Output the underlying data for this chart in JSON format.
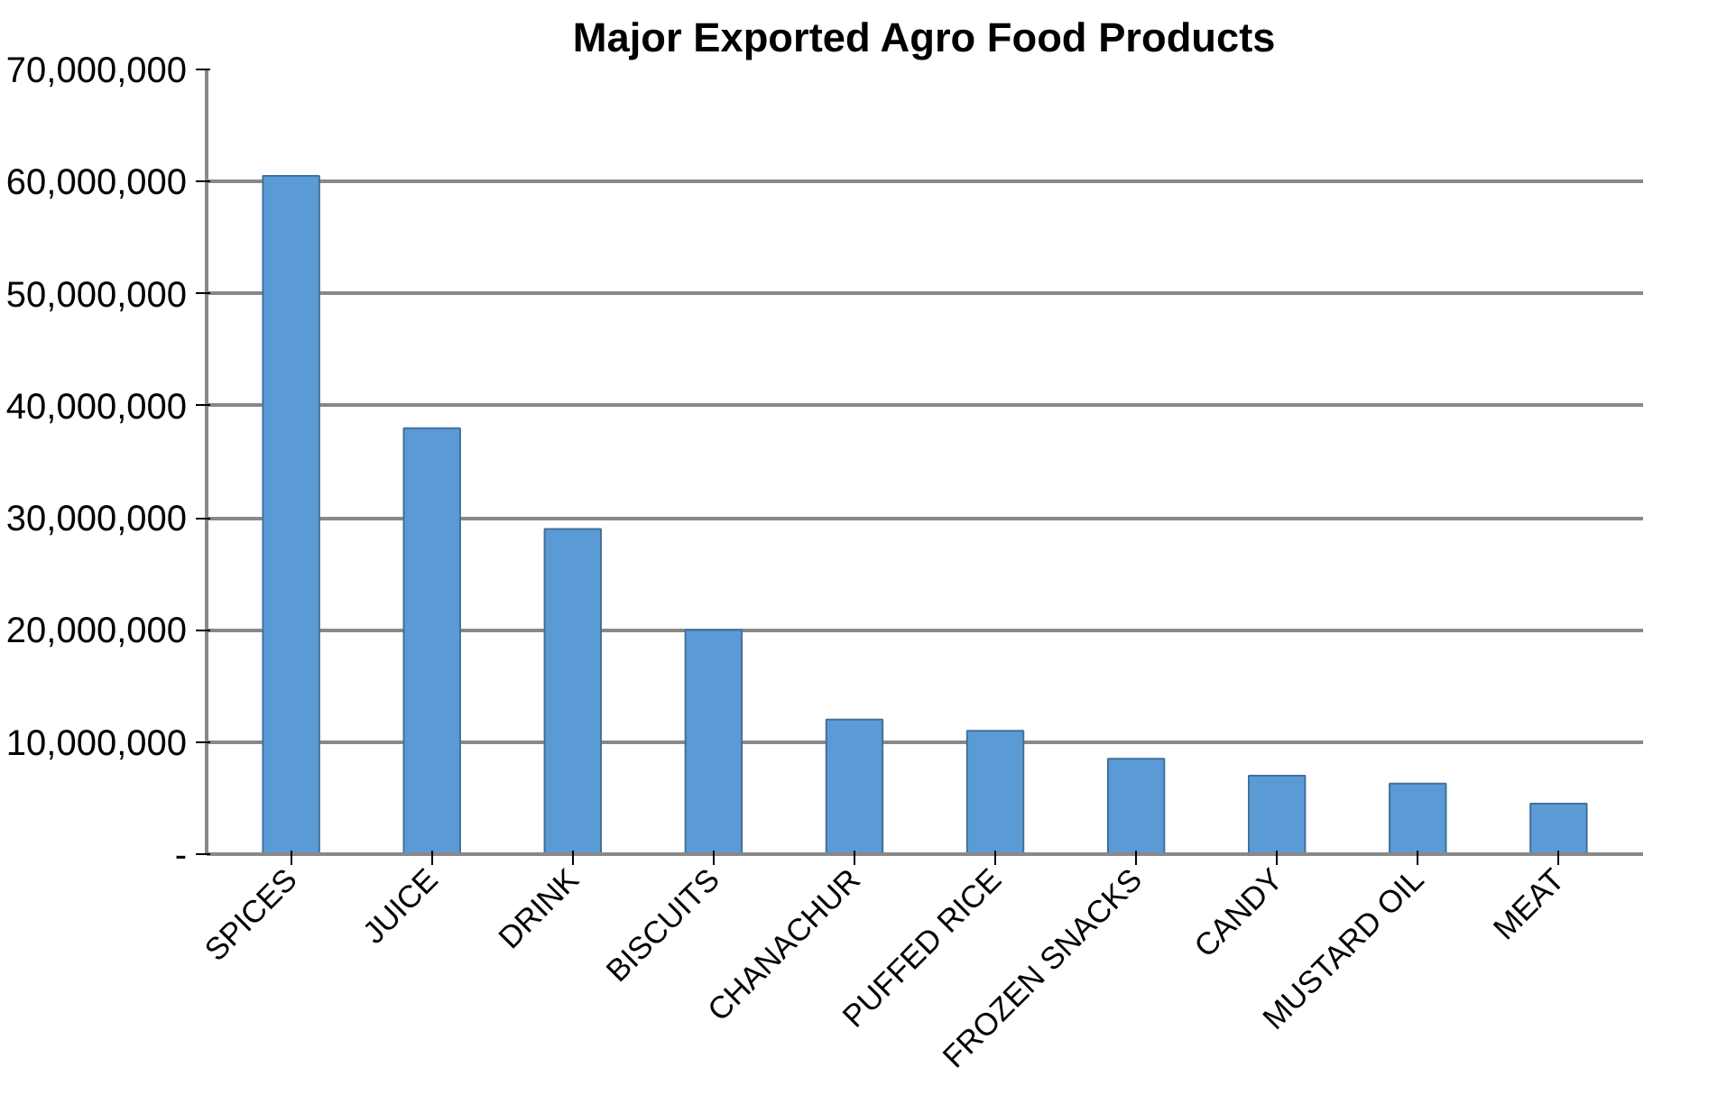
{
  "chart_data": {
    "type": "bar",
    "title": "Major Exported Agro Food Products",
    "categories": [
      "SPICES",
      "JUICE",
      "DRINK",
      "BISCUITS",
      "CHANACHUR",
      "PUFFED RICE",
      "FROZEN SNACKS",
      "CANDY",
      "MUSTARD OIL",
      "MEAT"
    ],
    "values": [
      60500000,
      38000000,
      29000000,
      20000000,
      12000000,
      11000000,
      8500000,
      7000000,
      6300000,
      4500000
    ],
    "color": "#5b9bd5",
    "ylim": [
      0,
      70000000
    ],
    "yticks": [
      {
        "value": 0,
        "label": "-"
      },
      {
        "value": 10000000,
        "label": "10,000,000"
      },
      {
        "value": 20000000,
        "label": "20,000,000"
      },
      {
        "value": 30000000,
        "label": "30,000,000"
      },
      {
        "value": 40000000,
        "label": "40,000,000"
      },
      {
        "value": 50000000,
        "label": "50,000,000"
      },
      {
        "value": 60000000,
        "label": "60,000,000"
      },
      {
        "value": 70000000,
        "label": "70,000,000"
      }
    ],
    "grid": "y"
  }
}
